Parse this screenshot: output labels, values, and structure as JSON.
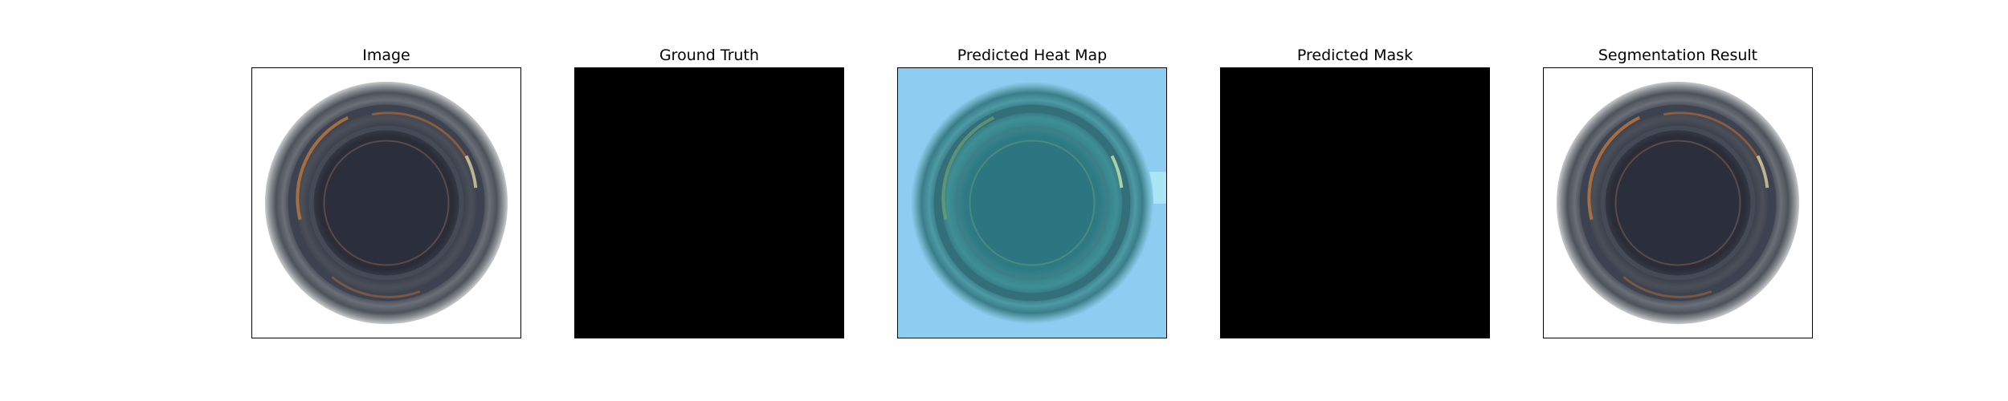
{
  "figure": {
    "panels": [
      {
        "title": "Image",
        "content": "bottle-top-view-photo",
        "background": "#ffffff"
      },
      {
        "title": "Ground Truth",
        "content": "empty-mask",
        "background": "#000000"
      },
      {
        "title": "Predicted Heat Map",
        "content": "heatmap-overlay",
        "background": "#8ecdf2"
      },
      {
        "title": "Predicted Mask",
        "content": "empty-mask",
        "background": "#000000"
      },
      {
        "title": "Segmentation Result",
        "content": "bottle-top-view-photo",
        "background": "#ffffff"
      }
    ]
  },
  "colors": {
    "mask": "#000000",
    "heatmap_bg": "#8ecdf2",
    "heatmap_ring": "#2f6f7c",
    "bottle_ring": "#555a63",
    "bottle_center": "#2c2f3a",
    "copper_glint": "#b8743c"
  }
}
